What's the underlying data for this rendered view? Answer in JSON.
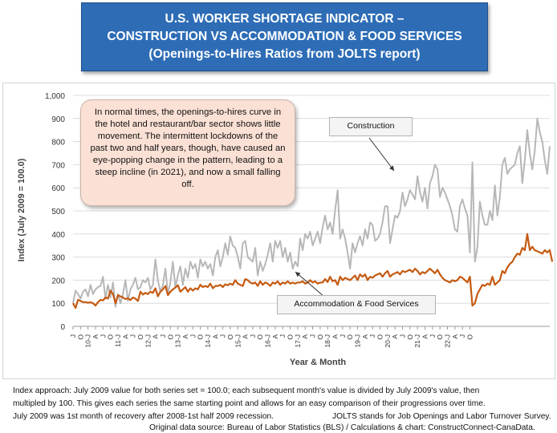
{
  "title": {
    "line1": "U.S. WORKER SHORTAGE INDICATOR –",
    "line2": "CONSTRUCTION VS ACCOMMODATION & FOOD SERVICES",
    "line3": "(Openings-to-Hires Ratios from JOLTS report)"
  },
  "note": {
    "text": "In normal times, the openings-to-hires curve in the hotel and restaurant/bar sector shows little movement. The intermittent lockdowns of the past two and half years, though, have caused an eye-popping change in the pattern, leading to a steep incline (in 2021), and now a small falling off."
  },
  "labels": {
    "construction": "Construction",
    "accommodation": "Accommodation & Food Services"
  },
  "footnotes": {
    "line1": "Index approach: July 2009 value for both series set = 100.0; each subsequent month's value is divided by July 2009's value, then",
    "line2": "multipled by 100. This gives each series the same starting point and allows for an easy comparison of their progressions over time.",
    "line3a": "July 2009 was 1st month of recovery after 2008-1st half 2009 recession.",
    "line3b": "JOLTS stands for Job Openings and Labor Turnover Survey.",
    "line4": "Original data source: Bureau of Labor Statistics (BLS) / Calculations & chart: ConstructConnect-CanaData."
  },
  "chart_data": {
    "type": "line",
    "xlabel": "Year & Month",
    "ylabel": "Index (July 2009 = 100.0)",
    "ylim": [
      0,
      1000
    ],
    "yticks": [
      "0",
      "100",
      "200",
      "300",
      "400",
      "500",
      "600",
      "700",
      "800",
      "900",
      "1,000"
    ],
    "x_tick_labels": [
      "J",
      "O",
      "10-J",
      "A",
      "J",
      "O",
      "11-J",
      "A",
      "J",
      "O",
      "12-J",
      "A",
      "J",
      "O",
      "13-J",
      "A",
      "J",
      "O",
      "14-J",
      "A",
      "J",
      "O",
      "15-J",
      "A",
      "J",
      "O",
      "16-J",
      "A",
      "J",
      "O",
      "17-J",
      "A",
      "J",
      "O",
      "18-J",
      "A",
      "J",
      "O",
      "19-J",
      "A",
      "J",
      "O",
      "20-J",
      "A",
      "J",
      "O",
      "21-J",
      "A",
      "J",
      "O",
      "22-J",
      "A",
      "J",
      "O"
    ],
    "grid": true,
    "colors": {
      "construction": "#b7b7b7",
      "accommodation": "#c55a11"
    },
    "series": [
      {
        "name": "Construction",
        "values": [
          100,
          155,
          140,
          120,
          150,
          160,
          130,
          180,
          140,
          160,
          170,
          175,
          215,
          120,
          180,
          125,
          190,
          85,
          140,
          100,
          140,
          200,
          110,
          160,
          180,
          210,
          160,
          170,
          200,
          190,
          210,
          160,
          180,
          290,
          200,
          150,
          180,
          250,
          140,
          190,
          280,
          170,
          220,
          260,
          180,
          250,
          210,
          280,
          250,
          270,
          210,
          290,
          260,
          280,
          250,
          270,
          220,
          300,
          330,
          260,
          300,
          360,
          310,
          390,
          350,
          340,
          300,
          250,
          360,
          370,
          300,
          290,
          280,
          340,
          220,
          280,
          240,
          270,
          310,
          360,
          280,
          370,
          340,
          370,
          300,
          340,
          280,
          320,
          250,
          280,
          260,
          380,
          330,
          400,
          380,
          410,
          350,
          380,
          410,
          360,
          430,
          480,
          420,
          450,
          400,
          500,
          590,
          380,
          420,
          380,
          320,
          250,
          360,
          320,
          360,
          390,
          350,
          420,
          380,
          450,
          440,
          370,
          380,
          400,
          450,
          520,
          520,
          360,
          420,
          480,
          470,
          500,
          580,
          520,
          550,
          590,
          570,
          550,
          650,
          580,
          540,
          600,
          510,
          620,
          650,
          700,
          680,
          560,
          600,
          580,
          550,
          520,
          480,
          420,
          410,
          520,
          550,
          510,
          480,
          320,
          710,
          280,
          340,
          540,
          480,
          440,
          440,
          500,
          460,
          610,
          480,
          560,
          700,
          730,
          660,
          680,
          690,
          700,
          750,
          780,
          620,
          720,
          850,
          750,
          680,
          760,
          900,
          840,
          800,
          720,
          660,
          780
        ]
      },
      {
        "name": "Accommodation & Food Services",
        "values": [
          100,
          80,
          115,
          110,
          105,
          105,
          102,
          104,
          100,
          90,
          105,
          115,
          112,
          125,
          120,
          155,
          140,
          100,
          135,
          130,
          125,
          118,
          122,
          114,
          125,
          120,
          110,
          150,
          138,
          145,
          140,
          150,
          145,
          165,
          130,
          150,
          160,
          175,
          135,
          150,
          160,
          168,
          178,
          150,
          160,
          170,
          150,
          165,
          155,
          165,
          160,
          180,
          170,
          175,
          170,
          185,
          165,
          175,
          175,
          180,
          170,
          182,
          178,
          185,
          180,
          200,
          185,
          180,
          175,
          205,
          200,
          190,
          185,
          190,
          175,
          195,
          180,
          190,
          185,
          175,
          190,
          185,
          195,
          180,
          190,
          185,
          195,
          185,
          190,
          185,
          190,
          190,
          195,
          185,
          190,
          200,
          190,
          195,
          185,
          190,
          190,
          205,
          192,
          215,
          195,
          200,
          180,
          215,
          200,
          210,
          205,
          200,
          210,
          220,
          200,
          225,
          215,
          225,
          200,
          215,
          210,
          220,
          225,
          230,
          215,
          230,
          240,
          215,
          225,
          230,
          235,
          225,
          240,
          235,
          240,
          245,
          235,
          250,
          240,
          225,
          235,
          230,
          240,
          250,
          240,
          230,
          245,
          225,
          210,
          200,
          195,
          190,
          200,
          195,
          200,
          215,
          210,
          200,
          190,
          215,
          90,
          100,
          140,
          160,
          180,
          175,
          185,
          180,
          215,
          180,
          190,
          200,
          240,
          230,
          255,
          270,
          280,
          300,
          315,
          310,
          340,
          330,
          400,
          330,
          345,
          330,
          325,
          320,
          315,
          330,
          320,
          330,
          280
        ]
      }
    ]
  }
}
